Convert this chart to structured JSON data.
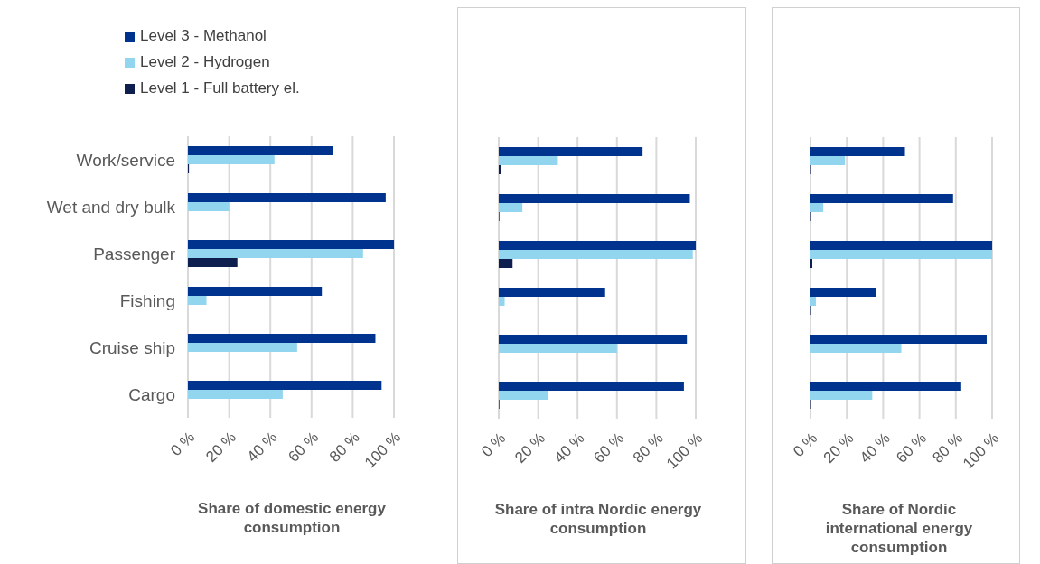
{
  "chart_data": [
    {
      "type": "bar",
      "orientation": "horizontal",
      "categories": [
        "Work/service",
        "Wet and dry bulk",
        "Passenger",
        "Fishing",
        "Cruise ship",
        "Cargo"
      ],
      "xlabel": "Share of domestic energy consumption",
      "xlim": [
        0,
        100
      ],
      "xticks": [
        {
          "value": 0,
          "label": "0 %"
        },
        {
          "value": 20,
          "label": "20 %"
        },
        {
          "value": 40,
          "label": "40 %"
        },
        {
          "value": 60,
          "label": "60 %"
        },
        {
          "value": 80,
          "label": "80 %"
        },
        {
          "value": 100,
          "label": "100 %"
        }
      ],
      "grid": "x",
      "legend": "top left",
      "series": [
        {
          "name": "Level 3 - Methanol",
          "color": "#00338d",
          "values": [
            70.5,
            96,
            100,
            65,
            91,
            94
          ]
        },
        {
          "name": "Level 2 - Hydrogen",
          "color": "#91d5ee",
          "values": [
            42,
            20,
            85,
            9,
            53,
            46
          ]
        },
        {
          "name": "Level 1 - Full battery el.",
          "color": "#0e1f4f",
          "values": [
            0.5,
            0,
            24,
            0,
            0,
            0
          ]
        }
      ]
    },
    {
      "type": "bar",
      "orientation": "horizontal",
      "categories": [
        null,
        null,
        null,
        null,
        null,
        null
      ],
      "xlabel": "Share of intra Nordic energy consumption",
      "xlim": [
        0,
        100
      ],
      "xticks": [
        {
          "value": 0,
          "label": "0 %"
        },
        {
          "value": 20,
          "label": "20 %"
        },
        {
          "value": 40,
          "label": "40 %"
        },
        {
          "value": 60,
          "label": "60 %"
        },
        {
          "value": 80,
          "label": "80 %"
        },
        {
          "value": 100,
          "label": "100 %"
        }
      ],
      "grid": "x",
      "tick_labels": "x",
      "series": [
        {
          "color": "#00338d",
          "values": [
            73,
            97,
            100,
            54,
            95.5,
            94
          ]
        },
        {
          "color": "#91d5ee",
          "values": [
            30,
            12,
            98.5,
            3,
            60,
            25
          ]
        },
        {
          "color": "#0e1f4f",
          "values": [
            1,
            0.3,
            7,
            0,
            0,
            0.3
          ]
        }
      ]
    },
    {
      "type": "bar",
      "orientation": "horizontal",
      "categories": [
        null,
        null,
        null,
        null,
        null,
        null
      ],
      "xlabel": "Share of Nordic international energy consumption",
      "xlim": [
        0,
        100
      ],
      "xticks": [
        {
          "value": 0,
          "label": "0 %"
        },
        {
          "value": 20,
          "label": "20 %"
        },
        {
          "value": 40,
          "label": "40 %"
        },
        {
          "value": 60,
          "label": "60 %"
        },
        {
          "value": 80,
          "label": "80 %"
        },
        {
          "value": 100,
          "label": "100 %"
        }
      ],
      "grid": "x",
      "tick_labels": "x",
      "series": [
        {
          "color": "#00338d",
          "values": [
            52,
            78.5,
            100,
            36,
            97,
            83
          ]
        },
        {
          "color": "#91d5ee",
          "values": [
            19,
            7,
            100,
            3,
            50,
            34
          ]
        },
        {
          "color": "#0e1f4f",
          "values": [
            0.3,
            0.3,
            1,
            0.3,
            0,
            0.3
          ]
        }
      ]
    }
  ]
}
